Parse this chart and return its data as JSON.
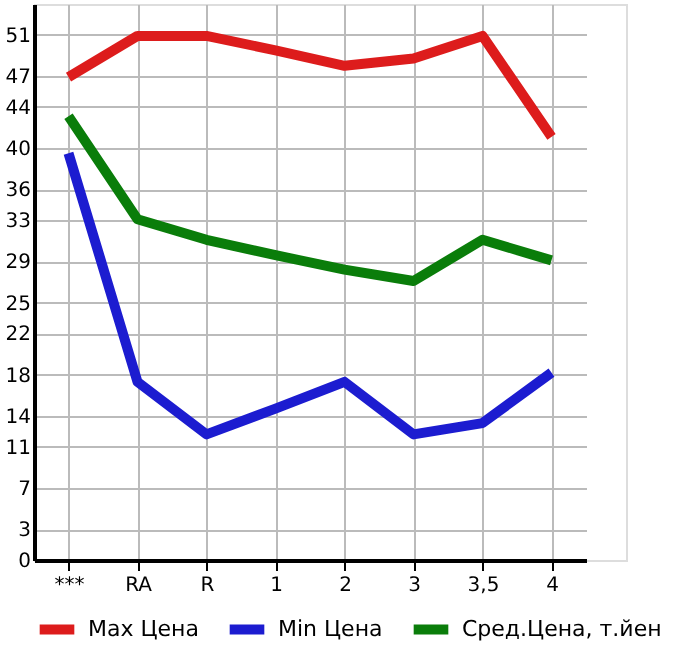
{
  "chart_data": {
    "type": "line",
    "categories": [
      "***",
      "RA",
      "R",
      "1",
      "2",
      "3",
      "3,5",
      "4"
    ],
    "series": [
      {
        "name": "Max Цена",
        "color": "#dd1c1c",
        "values": [
          46.9,
          50.9,
          50.9,
          49.5,
          48.0,
          48.7,
          50.9,
          41.1
        ]
      },
      {
        "name": "Min Цена",
        "color": "#1c1cd0",
        "values": [
          39.5,
          17.3,
          12.2,
          14.7,
          17.3,
          12.2,
          13.3,
          18.2
        ]
      },
      {
        "name": "Сред.Цена, т.йен",
        "color": "#0a7d0a",
        "values": [
          43.1,
          33.1,
          31.1,
          29.6,
          28.2,
          27.1,
          31.1,
          29.1
        ]
      }
    ],
    "ylim": [
      0,
      54
    ],
    "yticks": [
      0,
      3,
      7,
      11,
      14,
      18,
      22,
      25,
      29,
      33,
      36,
      40,
      44,
      47,
      51
    ],
    "grid": true,
    "legend": "bottom"
  }
}
